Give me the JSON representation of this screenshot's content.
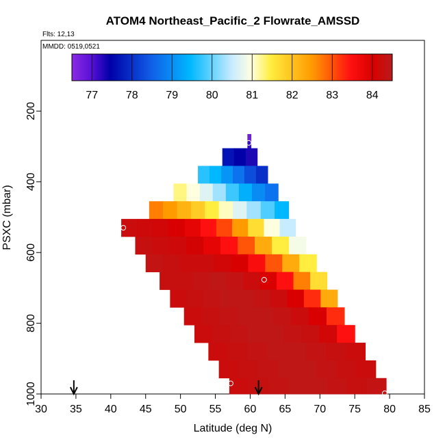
{
  "chart_data": {
    "type": "heatmap",
    "title": "ATOM4 Northeast_Pacific_2 Flowrate_AMSSD",
    "subtitle_flights": "Flts: 12,13",
    "subtitle_dates": "MMDD: 0519,0521",
    "xlabel": "Latitude (deg N)",
    "ylabel": "PSXC (mbar)",
    "xlim": [
      30,
      85
    ],
    "ylim": [
      1000,
      0
    ],
    "x_ticks": [
      30,
      35,
      40,
      45,
      50,
      55,
      60,
      65,
      70,
      75,
      80,
      85
    ],
    "y_ticks": [
      200,
      400,
      600,
      800,
      1000
    ],
    "colorbar": {
      "range": [
        76.5,
        84.5
      ],
      "ticks": [
        77,
        78,
        79,
        80,
        81,
        82,
        83,
        84
      ]
    },
    "bands": [
      {
        "p_top": 265,
        "p_bottom": 285,
        "lat_start": 59.6,
        "lat_end": 60.1,
        "values": [
          76.6,
          76.6
        ]
      },
      {
        "p_top": 285,
        "p_bottom": 305,
        "lat_start": 59.6,
        "lat_end": 60.1,
        "values": [
          76.8,
          76.8
        ]
      },
      {
        "p_top": 305,
        "p_bottom": 355,
        "lat_start": 56.0,
        "lat_end": 61.0,
        "values": [
          77.2,
          77.0,
          76.9
        ]
      },
      {
        "p_top": 355,
        "p_bottom": 405,
        "lat_start": 52.5,
        "lat_end": 62.5,
        "values": [
          79.2,
          79.0,
          78.6,
          78.2,
          77.8,
          77.5
        ]
      },
      {
        "p_top": 405,
        "p_bottom": 455,
        "lat_start": 49.0,
        "lat_end": 64.0,
        "values": [
          80.8,
          80.5,
          80.2,
          79.8,
          79.3,
          78.9,
          78.5,
          78.2
        ]
      },
      {
        "p_top": 455,
        "p_bottom": 505,
        "lat_start": 45.5,
        "lat_end": 65.5,
        "values": [
          82.2,
          82.0,
          81.7,
          81.4,
          81.0,
          80.6,
          80.2,
          79.8,
          79.4,
          79.0
        ]
      },
      {
        "p_top": 505,
        "p_bottom": 555,
        "lat_start": 41.5,
        "lat_end": 66.5,
        "values": [
          84.0,
          83.9,
          83.8,
          83.6,
          83.4,
          83.0,
          82.6,
          82.0,
          81.2,
          80.5,
          80.0
        ]
      },
      {
        "p_top": 555,
        "p_bottom": 605,
        "lat_start": 43.5,
        "lat_end": 68.0,
        "values": [
          84.1,
          84.0,
          83.9,
          83.7,
          83.4,
          83.0,
          82.5,
          81.8,
          81.0,
          80.4
        ]
      },
      {
        "p_top": 605,
        "p_bottom": 655,
        "lat_start": 45.0,
        "lat_end": 69.5,
        "values": [
          84.2,
          84.1,
          84.0,
          84.0,
          83.8,
          83.6,
          83.1,
          82.5,
          81.8,
          81.0
        ]
      },
      {
        "p_top": 655,
        "p_bottom": 705,
        "lat_start": 47.0,
        "lat_end": 71.0,
        "values": [
          84.1,
          84.1,
          84.2,
          84.3,
          84.2,
          84.0,
          83.6,
          83.0,
          82.2,
          81.2
        ]
      },
      {
        "p_top": 705,
        "p_bottom": 755,
        "lat_start": 48.5,
        "lat_end": 72.5,
        "values": [
          84.0,
          84.1,
          84.2,
          84.3,
          84.3,
          84.2,
          84.0,
          83.6,
          82.8,
          81.8
        ]
      },
      {
        "p_top": 755,
        "p_bottom": 805,
        "lat_start": 50.5,
        "lat_end": 73.5,
        "values": [
          84.0,
          84.1,
          84.2,
          84.3,
          84.3,
          84.2,
          84.0,
          83.6,
          82.8
        ]
      },
      {
        "p_top": 805,
        "p_bottom": 855,
        "lat_start": 52.0,
        "lat_end": 75.0,
        "values": [
          84.0,
          84.1,
          84.2,
          84.3,
          84.3,
          84.2,
          84.1,
          83.8,
          83.0
        ]
      },
      {
        "p_top": 855,
        "p_bottom": 905,
        "lat_start": 54.0,
        "lat_end": 76.5,
        "values": [
          84.0,
          84.1,
          84.2,
          84.3,
          84.3,
          84.2,
          84.1,
          84.0
        ]
      },
      {
        "p_top": 905,
        "p_bottom": 955,
        "lat_start": 55.5,
        "lat_end": 78.0,
        "values": [
          84.0,
          84.1,
          84.2,
          84.3,
          84.3,
          84.2,
          84.1,
          84.0
        ]
      },
      {
        "p_top": 955,
        "p_bottom": 1000,
        "lat_start": 57.0,
        "lat_end": 79.5,
        "values": [
          84.0,
          84.1,
          84.2,
          84.3,
          84.3,
          84.2,
          84.1,
          84.2
        ]
      }
    ],
    "markers": [
      {
        "lat": 59.8,
        "p": 290
      },
      {
        "lat": 41.8,
        "p": 530
      },
      {
        "lat": 62.0,
        "p": 677
      },
      {
        "lat": 57.2,
        "p": 970
      },
      {
        "lat": 79.3,
        "p": 998
      }
    ],
    "arrows": [
      {
        "lat": 34.7
      },
      {
        "lat": 61.2
      }
    ]
  }
}
